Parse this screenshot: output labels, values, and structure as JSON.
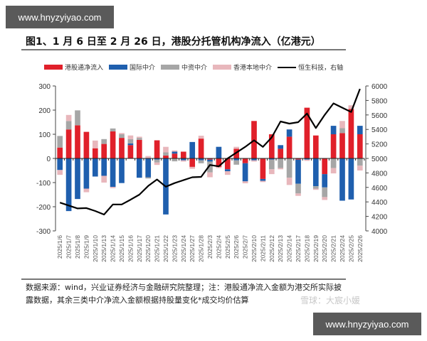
{
  "watermark": "www.hnyzyiyao.com",
  "title": "图1、1 月 6 日至 2 月 26 日，港股分托管机构净流入（亿港元）",
  "legend": [
    {
      "label": "港股通净流入",
      "color": "#e0202a",
      "type": "bar"
    },
    {
      "label": "国际中介",
      "color": "#1f5fae",
      "type": "bar"
    },
    {
      "label": "中资中介",
      "color": "#a6a6a6",
      "type": "bar"
    },
    {
      "label": "香港本地中介",
      "color": "#e8b7bc",
      "type": "bar"
    },
    {
      "label": "恒生科技，右轴",
      "color": "#000000",
      "type": "line"
    }
  ],
  "footnote_line1": "数据来源：wind，兴业证券经济与金融研究院整理；注：港股通净流入金额为港交所实际披",
  "footnote_line2": "露数据，其余三类中介净流入金额根据持股量变化*成交均价估算",
  "source_watermark": "雪球：大宸小媛",
  "chart_data": {
    "type": "bar",
    "title": "1月6日至2月26日，港股分托管机构净流入（亿港元）",
    "xlabel": "",
    "ylabel": "亿港元",
    "ylim": [
      -300,
      300
    ],
    "y_ticks": [
      -300,
      -200,
      -100,
      0,
      100,
      200,
      300
    ],
    "y2lim": [
      4000,
      6000
    ],
    "y2_ticks": [
      4000,
      4200,
      4400,
      4600,
      4800,
      5000,
      5200,
      5400,
      5600,
      5800,
      6000
    ],
    "stacked": true,
    "legend_position": "top",
    "categories": [
      "2025/1/6",
      "2025/1/7",
      "2025/1/8",
      "2025/1/9",
      "2025/1/10",
      "2025/1/13",
      "2025/1/14",
      "2025/1/15",
      "2025/1/16",
      "2025/1/17",
      "2025/1/20",
      "2025/1/21",
      "2025/1/22",
      "2025/1/23",
      "2025/1/24",
      "2025/1/27",
      "2025/1/28",
      "2025/2/3",
      "2025/2/4",
      "2025/2/5",
      "2025/2/6",
      "2025/2/7",
      "2025/2/10",
      "2025/2/11",
      "2025/2/12",
      "2025/2/13",
      "2025/2/14",
      "2025/2/17",
      "2025/2/18",
      "2025/2/19",
      "2025/2/20",
      "2025/2/21",
      "2025/2/24",
      "2025/2/25",
      "2025/2/26"
    ],
    "series": [
      {
        "name": "港股通净流入",
        "color": "#e0202a",
        "values": [
          45,
          120,
          137,
          110,
          42,
          60,
          112,
          85,
          55,
          77,
          2,
          75,
          12,
          20,
          28,
          -35,
          82,
          -5,
          -35,
          -45,
          40,
          -20,
          155,
          -85,
          100,
          40,
          90,
          -5,
          210,
          95,
          -65,
          100,
          105,
          205,
          100
        ]
      },
      {
        "name": "国际中介",
        "color": "#1f5fae",
        "values": [
          -48,
          -218,
          -168,
          -125,
          -75,
          -72,
          -118,
          -102,
          7,
          -80,
          -78,
          -5,
          -232,
          8,
          -8,
          68,
          -8,
          -8,
          48,
          -8,
          -8,
          -75,
          -8,
          -8,
          -5,
          15,
          30,
          -100,
          -5,
          -115,
          -55,
          35,
          -175,
          -170,
          35
        ]
      },
      {
        "name": "中资中介",
        "color": "#a6a6a6",
        "values": [
          48,
          35,
          62,
          0,
          0,
          20,
          12,
          15,
          18,
          8,
          -5,
          -12,
          13,
          -12,
          0,
          0,
          -12,
          -45,
          0,
          0,
          -18,
          0,
          0,
          0,
          -40,
          -40,
          -80,
          -40,
          0,
          -10,
          -40,
          -40,
          20,
          0,
          -30
        ]
      },
      {
        "name": "香港本地中介",
        "color": "#e8b7bc",
        "values": [
          -20,
          25,
          0,
          -15,
          32,
          -28,
          -5,
          5,
          15,
          5,
          8,
          -10,
          23,
          5,
          -5,
          -8,
          12,
          -20,
          -5,
          -15,
          8,
          -8,
          -5,
          -5,
          -20,
          -5,
          -30,
          -10,
          -5,
          -5,
          -12,
          -22,
          30,
          15,
          -20
        ]
      }
    ],
    "line_series": {
      "name": "恒生科技，右轴",
      "axis": "right",
      "values": [
        4390,
        4350,
        4310,
        4315,
        4275,
        4225,
        4365,
        4365,
        4430,
        4500,
        4620,
        4710,
        4610,
        4660,
        4700,
        4740,
        4745,
        4910,
        4890,
        5000,
        5080,
        5160,
        5250,
        5160,
        5290,
        5510,
        5480,
        5500,
        5620,
        5420,
        5600,
        5760,
        5700,
        5640,
        5960
      ]
    }
  }
}
